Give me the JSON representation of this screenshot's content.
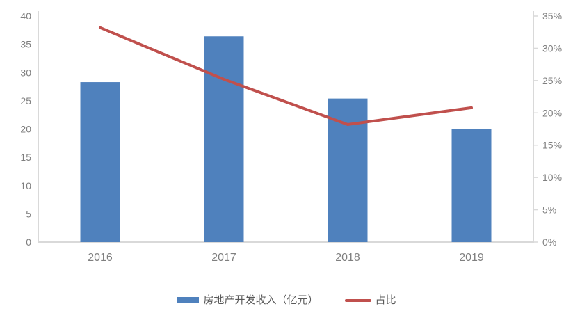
{
  "chart_data": {
    "type": "combo",
    "categories": [
      "2016",
      "2017",
      "2018",
      "2019"
    ],
    "series": [
      {
        "name": "房地产开发收入（亿元）",
        "type": "bar",
        "axis": "left",
        "values": [
          28.3,
          36.4,
          25.4,
          20.0
        ],
        "color": "#4F81BD"
      },
      {
        "name": "占比",
        "type": "line",
        "axis": "right",
        "values": [
          33.2,
          25.2,
          18.2,
          20.8
        ],
        "unit": "%",
        "color": "#C0504D"
      }
    ],
    "left_axis": {
      "min": 0,
      "max": 40,
      "step": 5,
      "tick_labels": [
        "0",
        "5",
        "10",
        "15",
        "20",
        "25",
        "30",
        "35",
        "40"
      ]
    },
    "right_axis": {
      "min": 0,
      "max": 35,
      "step": 5,
      "tick_labels": [
        "0%",
        "5%",
        "10%",
        "15%",
        "20%",
        "25%",
        "30%",
        "35%"
      ]
    },
    "title": "",
    "xlabel": "",
    "ylabel": "",
    "grid": false,
    "legend_position": "bottom",
    "colors": {
      "bar": "#4F81BD",
      "line": "#C0504D",
      "axis_line": "#D9D9D9",
      "tick_text": "#7F7F7F",
      "legend_text": "#595959",
      "background": "#FFFFFF"
    }
  }
}
